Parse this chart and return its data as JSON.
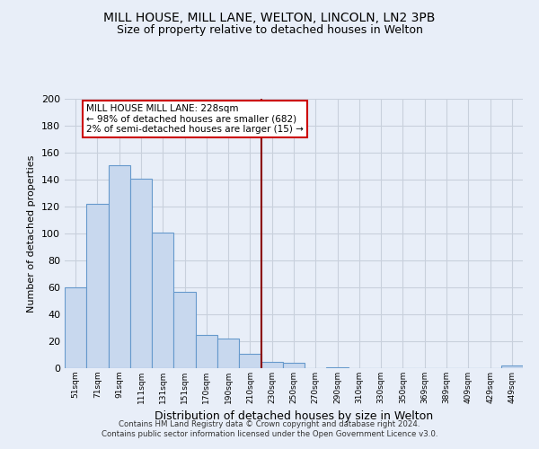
{
  "title": "MILL HOUSE, MILL LANE, WELTON, LINCOLN, LN2 3PB",
  "subtitle": "Size of property relative to detached houses in Welton",
  "xlabel": "Distribution of detached houses by size in Welton",
  "ylabel": "Number of detached properties",
  "bar_labels": [
    "51sqm",
    "71sqm",
    "91sqm",
    "111sqm",
    "131sqm",
    "151sqm",
    "170sqm",
    "190sqm",
    "210sqm",
    "230sqm",
    "250sqm",
    "270sqm",
    "290sqm",
    "310sqm",
    "330sqm",
    "350sqm",
    "369sqm",
    "389sqm",
    "409sqm",
    "429sqm",
    "449sqm"
  ],
  "bar_values": [
    60,
    122,
    151,
    141,
    101,
    57,
    25,
    22,
    11,
    5,
    4,
    0,
    1,
    0,
    0,
    0,
    0,
    0,
    0,
    0,
    2
  ],
  "bar_color": "#c8d8ee",
  "bar_edge_color": "#6699cc",
  "vline_color": "#8b0000",
  "vline_x_index": 9,
  "annotation_title": "MILL HOUSE MILL LANE: 228sqm",
  "annotation_line1": "← 98% of detached houses are smaller (682)",
  "annotation_line2": "2% of semi-detached houses are larger (15) →",
  "annotation_box_color": "white",
  "annotation_box_edge_color": "#cc0000",
  "ylim": [
    0,
    200
  ],
  "yticks": [
    0,
    20,
    40,
    60,
    80,
    100,
    120,
    140,
    160,
    180,
    200
  ],
  "footer_line1": "Contains HM Land Registry data © Crown copyright and database right 2024.",
  "footer_line2": "Contains public sector information licensed under the Open Government Licence v3.0.",
  "background_color": "#e8eef8",
  "grid_color": "#c8d0dc",
  "title_fontsize": 10,
  "subtitle_fontsize": 9,
  "ylabel_fontsize": 8,
  "xlabel_fontsize": 9
}
